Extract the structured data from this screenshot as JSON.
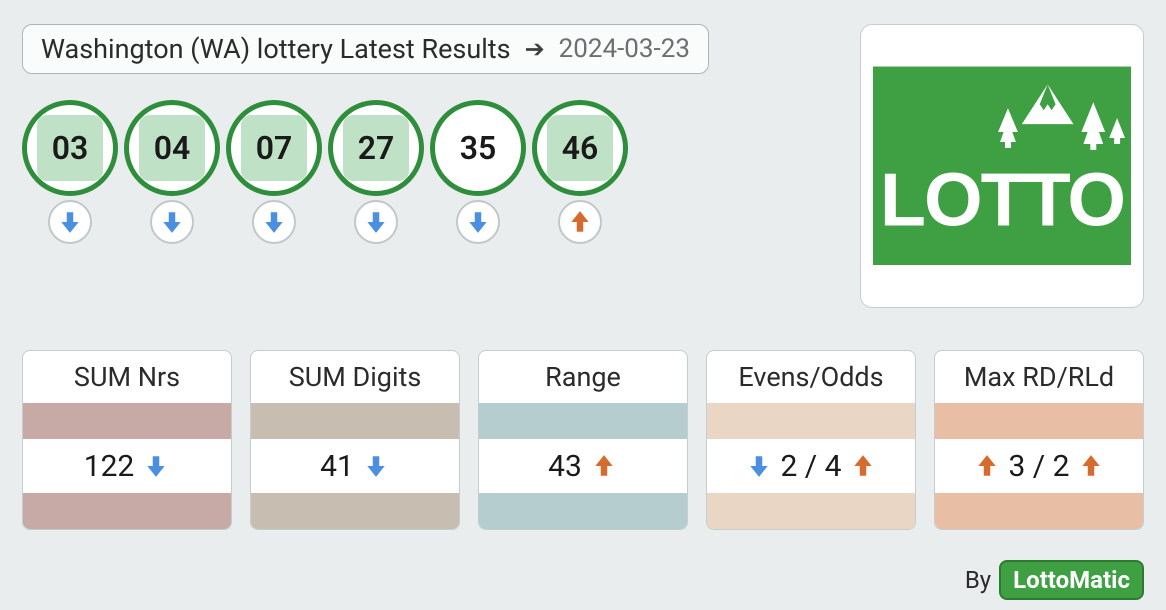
{
  "colors": {
    "ball_border": "#2f8e3c",
    "ball_fill_highlight": "#bfe2c6",
    "ball_fill_plain": "#ffffff",
    "arrow_down": "#4a8fe0",
    "arrow_up": "#d66b2f",
    "logo_bg": "#3fa043",
    "logo_white": "#ffffff"
  },
  "header": {
    "title": "Washington (WA) lottery Latest Results",
    "date": "2024-03-23"
  },
  "balls": [
    {
      "n": "03",
      "highlight": true,
      "trend": "down"
    },
    {
      "n": "04",
      "highlight": true,
      "trend": "down"
    },
    {
      "n": "07",
      "highlight": true,
      "trend": "down"
    },
    {
      "n": "27",
      "highlight": true,
      "trend": "down"
    },
    {
      "n": "35",
      "highlight": false,
      "trend": "down"
    },
    {
      "n": "46",
      "highlight": true,
      "trend": "up"
    }
  ],
  "logo": {
    "text": "LOTTO"
  },
  "stats": [
    {
      "title": "SUM Nrs",
      "band_color": "#c7aaa6",
      "value": "122",
      "left_arrow": null,
      "right_arrow": "down"
    },
    {
      "title": "SUM Digits",
      "band_color": "#c7bdb0",
      "value": "41",
      "left_arrow": null,
      "right_arrow": "down"
    },
    {
      "title": "Range",
      "band_color": "#b5cdce",
      "value": "43",
      "left_arrow": null,
      "right_arrow": "up"
    },
    {
      "title": "Evens/Odds",
      "band_color": "#ead6c4",
      "value": "2 / 4",
      "left_arrow": "down",
      "right_arrow": "up"
    },
    {
      "title": "Max RD/RLd",
      "band_color": "#e8bfa4",
      "value": "3 / 2",
      "left_arrow": "up",
      "right_arrow": "up"
    }
  ],
  "footer": {
    "by": "By",
    "brand": "LottoMatic"
  }
}
